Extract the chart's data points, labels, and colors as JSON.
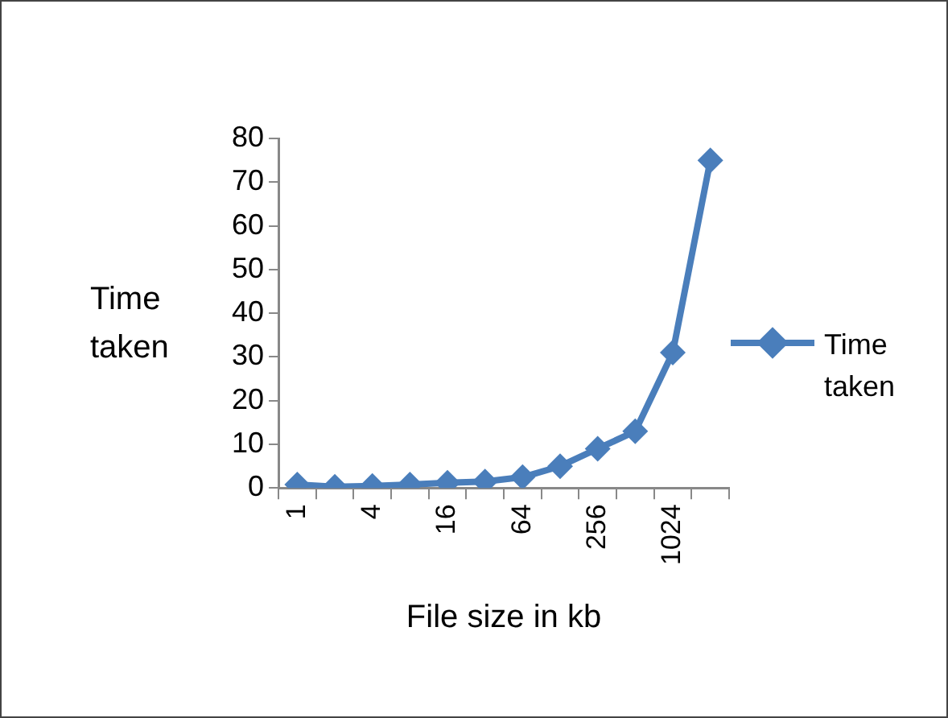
{
  "chart_data": {
    "type": "line",
    "xlabel": "File size in kb",
    "ylabel": "Time taken",
    "categories": [
      "1",
      null,
      "4",
      null,
      "16",
      null,
      "64",
      null,
      "256",
      null,
      "1024",
      null
    ],
    "series": [
      {
        "name": "Time taken",
        "color": "#4a7ebb",
        "values": [
          0.8,
          0.3,
          0.5,
          0.8,
          1.2,
          1.5,
          2.5,
          5,
          9,
          13,
          31,
          75
        ]
      }
    ],
    "ylim": [
      0,
      80
    ],
    "yticks": [
      0,
      10,
      20,
      30,
      40,
      50,
      60,
      70,
      80
    ],
    "grid": false,
    "legend": "right",
    "marker": "diamond",
    "line_style": "solid"
  }
}
